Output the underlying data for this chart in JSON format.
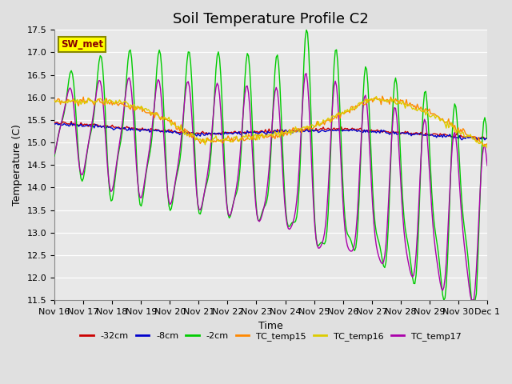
{
  "title": "Soil Temperature Profile C2",
  "xlabel": "Time",
  "ylabel": "Temperature (C)",
  "ylim": [
    11.5,
    17.5
  ],
  "yticks": [
    11.5,
    12.0,
    12.5,
    13.0,
    13.5,
    14.0,
    14.5,
    15.0,
    15.5,
    16.0,
    16.5,
    17.0,
    17.5
  ],
  "fig_bg_color": "#e0e0e0",
  "plot_bg_color": "#e8e8e8",
  "grid_color": "#ffffff",
  "legend_labels": [
    "-32cm",
    "-8cm",
    "-2cm",
    "TC_temp15",
    "TC_temp16",
    "TC_temp17"
  ],
  "legend_colors": [
    "#cc0000",
    "#0000cc",
    "#00cc00",
    "#ff8800",
    "#ddcc00",
    "#aa00aa"
  ],
  "sw_met_box_color": "#ffff00",
  "sw_met_text_color": "#880000",
  "sw_met_border_color": "#888800",
  "title_fontsize": 13,
  "axis_fontsize": 9,
  "tick_fontsize": 8,
  "line_width": 1.0,
  "xtick_labels": [
    "Nov 16",
    "Nov 17",
    "Nov 18",
    "Nov 19",
    "Nov 20",
    "Nov 21",
    "Nov 22",
    "Nov 23",
    "Nov 24",
    "Nov 25",
    "Nov 26",
    "Nov 27",
    "Nov 28",
    "Nov 29",
    "Nov 30",
    "Dec 1"
  ]
}
